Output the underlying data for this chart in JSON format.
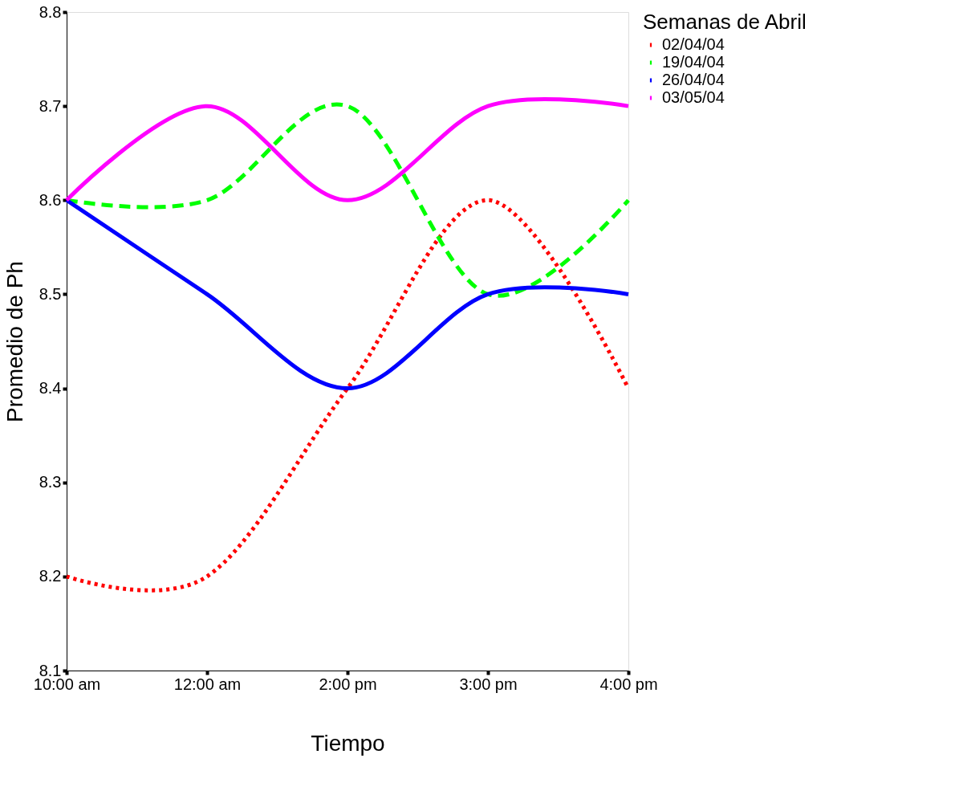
{
  "chart_data": {
    "type": "line",
    "xlabel": "Tiempo",
    "ylabel": "Promedio de Ph",
    "legend_title": "Semanas de Abril",
    "categories": [
      "10:00 am",
      "12:00 am",
      "2:00 pm",
      "3:00 pm",
      "4:00 pm"
    ],
    "series": [
      {
        "name": "02/04/04",
        "color": "#ff0000",
        "line_style": "dotted",
        "values": [
          8.2,
          8.2,
          8.4,
          8.6,
          8.4
        ]
      },
      {
        "name": "19/04/04",
        "color": "#00ff00",
        "line_style": "dashed",
        "values": [
          8.6,
          8.6,
          8.7,
          8.5,
          8.6
        ]
      },
      {
        "name": "26/04/04",
        "color": "#0000ff",
        "line_style": "solid",
        "values": [
          8.6,
          8.5,
          8.4,
          8.5,
          8.5
        ]
      },
      {
        "name": "03/05/04",
        "color": "#ff00ff",
        "line_style": "solid",
        "values": [
          8.6,
          8.7,
          8.6,
          8.7,
          8.7
        ]
      }
    ],
    "ylim": [
      8.1,
      8.8
    ],
    "yticks": [
      8.1,
      8.2,
      8.3,
      8.4,
      8.5,
      8.6,
      8.7,
      8.8
    ],
    "grid": false,
    "legend": "right",
    "marker": "none"
  }
}
